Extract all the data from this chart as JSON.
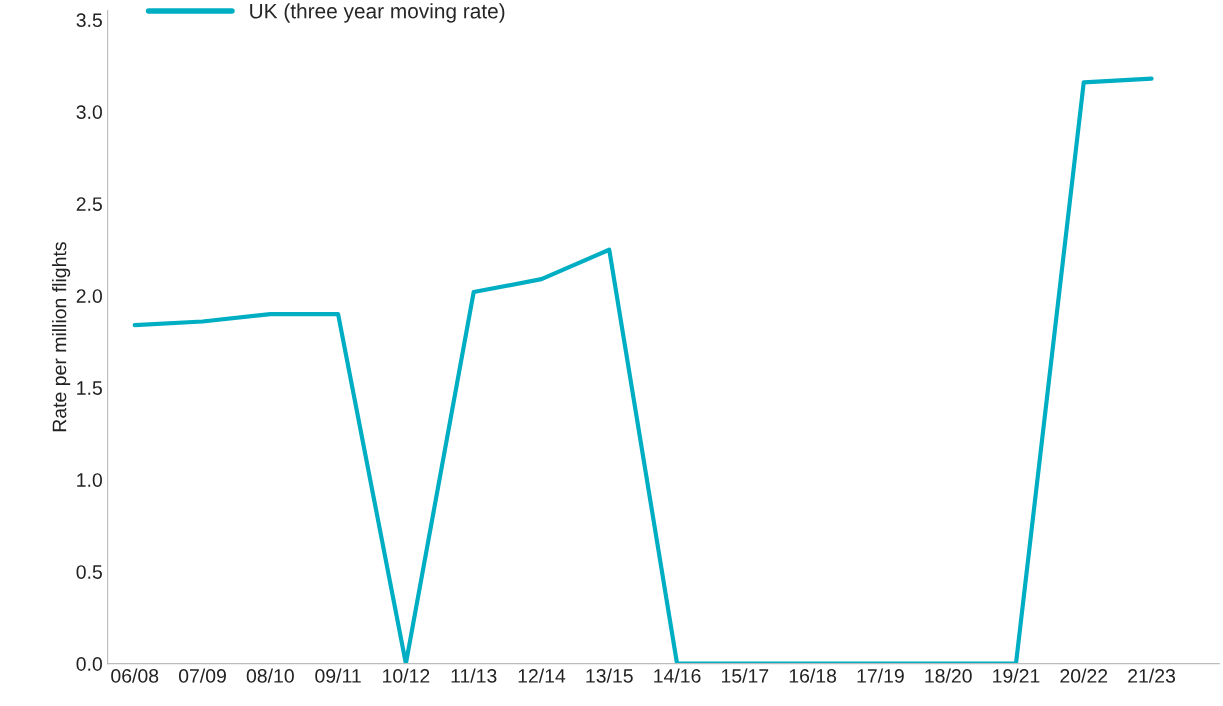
{
  "chart_data": {
    "type": "line",
    "ylabel": "Rate per million flights",
    "categories": [
      "06/08",
      "07/09",
      "08/10",
      "09/11",
      "10/12",
      "11/13",
      "12/14",
      "13/15",
      "14/16",
      "15/17",
      "16/18",
      "17/19",
      "18/20",
      "19/21",
      "20/22",
      "21/23"
    ],
    "series": [
      {
        "name": "UK (three year moving rate)",
        "color": "#00aec3",
        "values": [
          1.84,
          1.86,
          1.9,
          1.9,
          0,
          2.02,
          2.09,
          2.25,
          0,
          0,
          0,
          0,
          0,
          0,
          3.16,
          3.18
        ]
      }
    ],
    "ylim": [
      0,
      3.55
    ],
    "yticks": [
      {
        "value": 0,
        "label": "0.0"
      },
      0.5,
      {
        "value": 1,
        "label": "1.0"
      },
      1.5,
      {
        "value": 2,
        "label": "2.0"
      },
      2.5,
      {
        "value": 3,
        "label": "3.0"
      },
      3.5
    ],
    "grid": false,
    "legend": "top left",
    "marker": "none",
    "line_style": "solid"
  }
}
